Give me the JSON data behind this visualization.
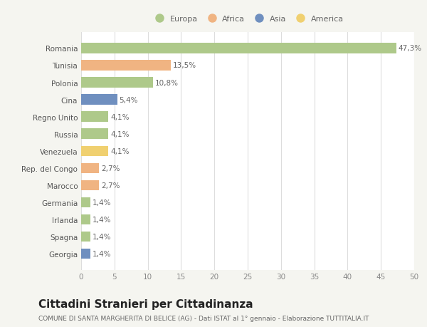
{
  "countries": [
    "Romania",
    "Tunisia",
    "Polonia",
    "Cina",
    "Regno Unito",
    "Russia",
    "Venezuela",
    "Rep. del Congo",
    "Marocco",
    "Germania",
    "Irlanda",
    "Spagna",
    "Georgia"
  ],
  "values": [
    47.3,
    13.5,
    10.8,
    5.4,
    4.1,
    4.1,
    4.1,
    2.7,
    2.7,
    1.4,
    1.4,
    1.4,
    1.4
  ],
  "labels": [
    "47,3%",
    "13,5%",
    "10,8%",
    "5,4%",
    "4,1%",
    "4,1%",
    "4,1%",
    "2,7%",
    "2,7%",
    "1,4%",
    "1,4%",
    "1,4%",
    "1,4%"
  ],
  "colors": [
    "#aec98a",
    "#f0b482",
    "#aec98a",
    "#6f8fbf",
    "#aec98a",
    "#aec98a",
    "#f0d070",
    "#f0b482",
    "#f0b482",
    "#aec98a",
    "#aec98a",
    "#aec98a",
    "#6f8fbf"
  ],
  "legend_labels": [
    "Europa",
    "Africa",
    "Asia",
    "America"
  ],
  "legend_colors": [
    "#aec98a",
    "#f0b482",
    "#6f8fbf",
    "#f0d070"
  ],
  "title": "Cittadini Stranieri per Cittadinanza",
  "subtitle": "COMUNE DI SANTA MARGHERITA DI BELICE (AG) - Dati ISTAT al 1° gennaio - Elaborazione TUTTITALIA.IT",
  "xlabel_max": 50,
  "xticks": [
    0,
    5,
    10,
    15,
    20,
    25,
    30,
    35,
    40,
    45,
    50
  ],
  "background_color": "#f5f5f0",
  "plot_bg_color": "#ffffff",
  "grid_color": "#dddddd",
  "bar_height": 0.6,
  "label_fontsize": 7.5,
  "tick_fontsize": 7.5,
  "title_fontsize": 11,
  "subtitle_fontsize": 6.5,
  "legend_fontsize": 8
}
